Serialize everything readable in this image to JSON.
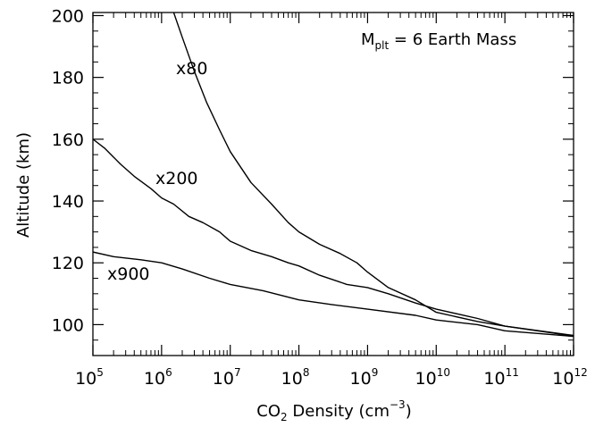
{
  "chart_data": {
    "type": "line",
    "xlabel_main": "CO",
    "xlabel_sub": "2",
    "xlabel_mid": " Density (cm",
    "xlabel_sup": "−3",
    "xlabel_end": ")",
    "ylabel": "Altitude (km)",
    "xscale": "log",
    "xlim": [
      100000,
      1000000000000
    ],
    "ylim": [
      90,
      201
    ],
    "x_ticks": [
      {
        "base": "10",
        "exp": "5",
        "value": 100000
      },
      {
        "base": "10",
        "exp": "6",
        "value": 1000000
      },
      {
        "base": "10",
        "exp": "7",
        "value": 10000000
      },
      {
        "base": "10",
        "exp": "8",
        "value": 100000000
      },
      {
        "base": "10",
        "exp": "9",
        "value": 1000000000
      },
      {
        "base": "10",
        "exp": "10",
        "value": 10000000000
      },
      {
        "base": "10",
        "exp": "11",
        "value": 100000000000
      },
      {
        "base": "10",
        "exp": "12",
        "value": 1000000000000
      }
    ],
    "y_ticks": [
      {
        "label": "100",
        "value": 100
      },
      {
        "label": "120",
        "value": 120
      },
      {
        "label": "140",
        "value": 140
      },
      {
        "label": "160",
        "value": 160
      },
      {
        "label": "180",
        "value": 180
      },
      {
        "label": "200",
        "value": 200
      }
    ],
    "annotation": {
      "main": "M",
      "sub": "plt",
      "rest": " = 6 Earth Mass"
    },
    "series": [
      {
        "name": "x80",
        "x": [
          1500000,
          2000000,
          3000000,
          4500000,
          7000000,
          10000000,
          20000000,
          40000000,
          70000000,
          100000000,
          200000000,
          400000000,
          700000000,
          1000000000,
          2000000000,
          5000000000,
          10000000000,
          40000000000,
          100000000000,
          1000000000000
        ],
        "y": [
          201,
          193,
          182,
          172,
          163,
          156,
          146,
          139,
          133,
          130,
          126,
          123,
          120,
          117,
          112,
          108,
          104,
          101,
          99.5,
          96.5
        ]
      },
      {
        "name": "x200",
        "x": [
          100000,
          150000,
          250000,
          400000,
          700000,
          1000000,
          1500000,
          2500000,
          4000000,
          7000000,
          10000000,
          20000000,
          40000000,
          70000000,
          100000000,
          200000000,
          500000000,
          1000000000,
          2000000000,
          5000000000,
          10000000000,
          40000000000,
          100000000000,
          1000000000000
        ],
        "y": [
          160,
          157,
          152,
          148,
          144,
          141,
          139,
          135,
          133,
          130,
          127,
          124,
          122,
          120,
          119,
          116,
          113,
          112,
          110,
          107,
          105,
          102,
          99.5,
          96.3
        ]
      },
      {
        "name": "x900",
        "x": [
          100000,
          200000,
          500000,
          1000000,
          2000000,
          5000000,
          10000000,
          30000000,
          100000000,
          300000000,
          1000000000,
          5000000000,
          10000000000,
          40000000000,
          100000000000,
          1000000000000
        ],
        "y": [
          123.5,
          122,
          121,
          120,
          118,
          115,
          113,
          111,
          108,
          106.5,
          105,
          103,
          101.5,
          100,
          98,
          96.2
        ]
      }
    ]
  }
}
